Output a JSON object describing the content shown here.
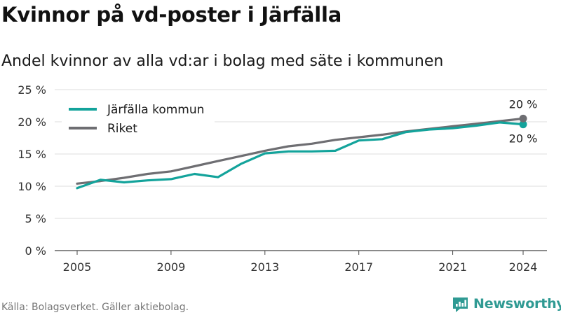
{
  "title": "Kvinnor på vd-poster i Järfälla",
  "subtitle": "Andel kvinnor av alla vd:ar i bolag med säte i kommunen",
  "source": "Källa: Bolagsverket. Gäller aktiebolag.",
  "brand": {
    "name": "Newsworthy",
    "icon": "newsworthy-logo-icon",
    "color": "#2f9a93"
  },
  "chart_data": {
    "type": "line",
    "x": [
      2005,
      2006,
      2007,
      2008,
      2009,
      2010,
      2011,
      2012,
      2013,
      2014,
      2015,
      2016,
      2017,
      2018,
      2019,
      2020,
      2021,
      2022,
      2023,
      2024
    ],
    "series": [
      {
        "name": "Järfälla kommun",
        "color": "#13a39b",
        "values": [
          9.7,
          11.0,
          10.6,
          10.9,
          11.1,
          11.9,
          11.4,
          13.5,
          15.1,
          15.4,
          15.4,
          15.5,
          17.1,
          17.3,
          18.4,
          18.8,
          19.0,
          19.4,
          19.9,
          19.6
        ],
        "end_label": "20 %"
      },
      {
        "name": "Riket",
        "color": "#6e6e72",
        "values": [
          10.4,
          10.8,
          11.3,
          11.9,
          12.3,
          13.1,
          13.9,
          14.7,
          15.5,
          16.2,
          16.6,
          17.2,
          17.6,
          18.0,
          18.5,
          18.9,
          19.3,
          19.7,
          20.1,
          20.5
        ],
        "end_label": "20 %"
      }
    ],
    "yticks": [
      0,
      5,
      10,
      15,
      20,
      25
    ],
    "ytick_labels": [
      "0 %",
      "5 %",
      "10 %",
      "15 %",
      "20 %",
      "25 %"
    ],
    "xticks": [
      2005,
      2009,
      2013,
      2017,
      2021,
      2024
    ],
    "xtick_labels": [
      "2005",
      "2009",
      "2013",
      "2017",
      "2021",
      "2024"
    ],
    "xlim": [
      2005,
      2024
    ],
    "ylim": [
      0,
      25
    ],
    "grid": true,
    "legend": "top-left",
    "xlabel": "",
    "ylabel": ""
  }
}
